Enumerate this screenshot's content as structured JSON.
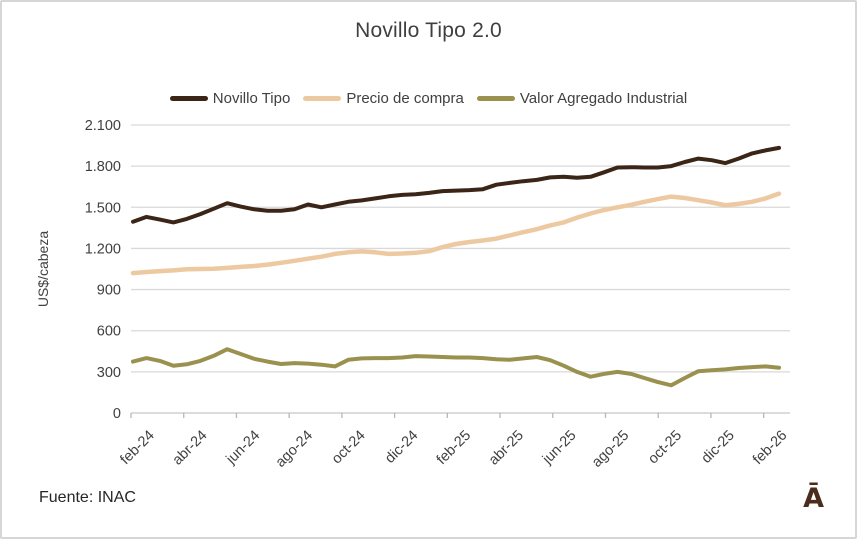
{
  "page": {
    "source": "Fuente: INAC",
    "logo": "Ā"
  },
  "colors": {
    "grid": "#d9d9d9",
    "axis": "#c6c6c6",
    "tick": "#b7b7b7",
    "text": "#404040",
    "border": "#d8d5d8",
    "novillo_tipo": "#3a2517",
    "precio_de_compra": "#edc9a2",
    "valor_agregado": "#9a914f"
  },
  "chart_data": {
    "type": "line",
    "title": "Novillo Tipo 2.0",
    "xlabel": "",
    "ylabel": "US$/cabeza",
    "ylim": [
      0,
      2100
    ],
    "ytick_step": 300,
    "ytick_labels": [
      "0",
      "300",
      "600",
      "900",
      "1.200",
      "1.500",
      "1.800",
      "2.100"
    ],
    "x_tick_labels": [
      "feb-24",
      "abr-24",
      "jun-24",
      "ago-24",
      "oct-24",
      "dic-24",
      "feb-25",
      "abr-25",
      "jun-25",
      "ago-25",
      "oct-25",
      "dic-25",
      "feb-26"
    ],
    "points_per_tick": 4,
    "grid": true,
    "legend_position": "top",
    "series": [
      {
        "name": "Novillo Tipo",
        "color": "#3a2517",
        "values": [
          1395,
          1430,
          1410,
          1390,
          1415,
          1450,
          1490,
          1530,
          1505,
          1485,
          1475,
          1475,
          1485,
          1520,
          1500,
          1520,
          1540,
          1550,
          1565,
          1580,
          1590,
          1595,
          1605,
          1618,
          1622,
          1625,
          1632,
          1665,
          1678,
          1690,
          1700,
          1718,
          1722,
          1715,
          1722,
          1755,
          1790,
          1792,
          1790,
          1790,
          1800,
          1830,
          1855,
          1843,
          1822,
          1855,
          1893,
          1915,
          1933
        ]
      },
      {
        "name": "Precio de compra",
        "color": "#edc9a2",
        "values": [
          1020,
          1028,
          1035,
          1040,
          1048,
          1050,
          1052,
          1058,
          1065,
          1072,
          1082,
          1095,
          1110,
          1125,
          1140,
          1160,
          1172,
          1178,
          1172,
          1160,
          1163,
          1168,
          1180,
          1210,
          1232,
          1247,
          1258,
          1272,
          1295,
          1318,
          1340,
          1368,
          1390,
          1425,
          1455,
          1480,
          1500,
          1518,
          1540,
          1560,
          1578,
          1568,
          1552,
          1535,
          1515,
          1525,
          1540,
          1565,
          1600
        ]
      },
      {
        "name": "Valor Agregado Industrial",
        "color": "#9a914f",
        "values": [
          375,
          400,
          380,
          345,
          355,
          380,
          417,
          465,
          430,
          395,
          375,
          357,
          364,
          360,
          352,
          340,
          388,
          398,
          400,
          400,
          405,
          415,
          412,
          408,
          405,
          405,
          400,
          392,
          388,
          398,
          408,
          385,
          345,
          300,
          265,
          285,
          300,
          285,
          255,
          225,
          202,
          255,
          305,
          312,
          318,
          328,
          335,
          340,
          330
        ]
      }
    ]
  }
}
